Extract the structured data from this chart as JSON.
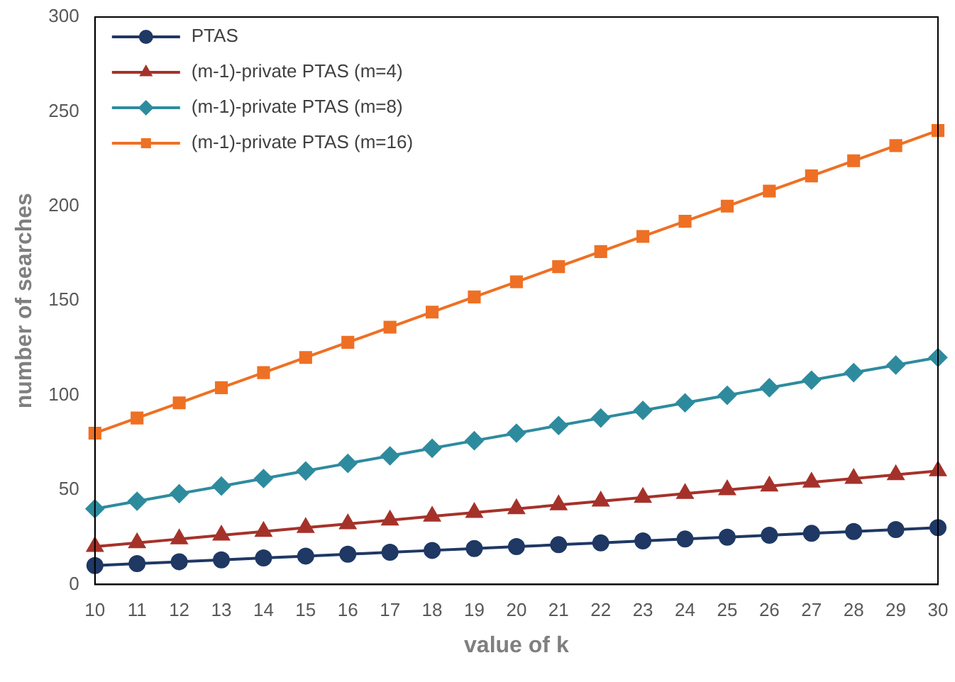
{
  "chart_data": {
    "type": "line",
    "xlabel": "value of k",
    "ylabel": "number of searches",
    "categories": [
      "10",
      "11",
      "12",
      "13",
      "14",
      "15",
      "16",
      "17",
      "18",
      "19",
      "20",
      "21",
      "22",
      "23",
      "24",
      "25",
      "26",
      "27",
      "28",
      "29",
      "30"
    ],
    "series": [
      {
        "name": "PTAS",
        "color": "#1f3864",
        "marker": "circle",
        "values": [
          10,
          11,
          12,
          13,
          14,
          15,
          16,
          17,
          18,
          19,
          20,
          21,
          22,
          23,
          24,
          25,
          26,
          27,
          28,
          29,
          30
        ]
      },
      {
        "name": "(m-1)-private PTAS (m=4)",
        "color": "#a5322a",
        "marker": "triangle",
        "values": [
          20,
          22,
          24,
          26,
          28,
          30,
          32,
          34,
          36,
          38,
          40,
          42,
          44,
          46,
          48,
          50,
          52,
          54,
          56,
          58,
          60
        ]
      },
      {
        "name": "(m-1)-private PTAS (m=8)",
        "color": "#2e8b9e",
        "marker": "diamond",
        "values": [
          40,
          44,
          48,
          52,
          56,
          60,
          64,
          68,
          72,
          76,
          80,
          84,
          88,
          92,
          96,
          100,
          104,
          108,
          112,
          116,
          120
        ]
      },
      {
        "name": "(m-1)-private PTAS (m=16)",
        "color": "#ee7024",
        "marker": "square",
        "values": [
          80,
          88,
          96,
          104,
          112,
          120,
          128,
          136,
          144,
          152,
          160,
          168,
          176,
          184,
          192,
          200,
          208,
          216,
          224,
          232,
          240
        ]
      }
    ],
    "ylim": [
      0,
      300
    ],
    "yticks": [
      0,
      50,
      100,
      150,
      200,
      250,
      300
    ],
    "grid": false,
    "legend": "top left",
    "line_style": "solid"
  }
}
